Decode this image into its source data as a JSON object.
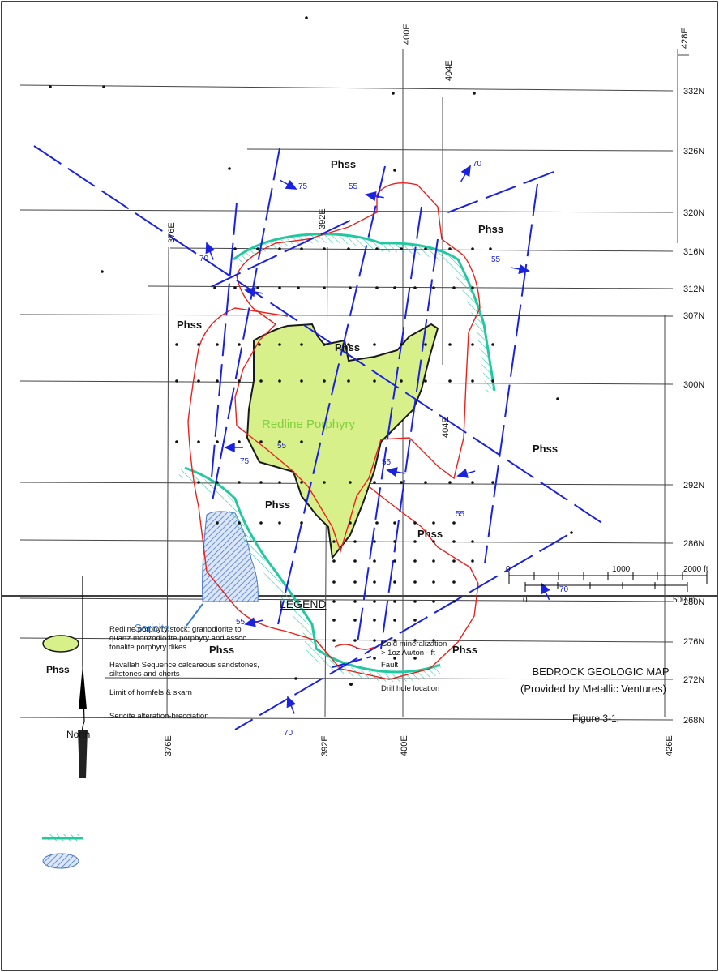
{
  "map": {
    "grid_east_labels_top": [
      "400E",
      "404E",
      "428E"
    ],
    "grid_east_labels_mid": [
      "376E",
      "392E",
      "404E"
    ],
    "grid_east_labels_bottom": [
      "376E",
      "392E",
      "400E",
      "426E"
    ],
    "grid_north_labels": [
      "332N",
      "326N",
      "320N",
      "316N",
      "312N",
      "307N",
      "300N",
      "292N",
      "286N",
      "280N",
      "276N",
      "272N",
      "268N"
    ],
    "unit_label": "Phss",
    "unit_labels_count": 9,
    "stock_label": "Redline Porphyry",
    "sericite_label": "Sericite",
    "dip_values": [
      "70",
      "75",
      "55",
      "55",
      "70",
      "55",
      "75",
      "55",
      "55",
      "55",
      "70",
      "70"
    ],
    "north_label": "North",
    "scale": {
      "ft_ticks": [
        "0",
        "1000",
        "2000 ft"
      ],
      "m_ticks": [
        "0",
        "500 m"
      ]
    },
    "colors": {
      "stock_fill": "#d8f08a",
      "stock_label": "#7ed03a",
      "gold_line": "#e8221c",
      "fault_line": "#1a22e0",
      "hornfels": "#22c8a0",
      "sericite": "#4a78c8",
      "sericite_label": "#3d7cc9"
    }
  },
  "legend": {
    "title": "LEGEND",
    "items_left": [
      {
        "symbol": "green-stock-swatch",
        "text_lines": [
          "Redline porphyry stock:  granodiorite to",
          "quartz monzodiorite porphyry and assoc.",
          "tonalite porphyry dikes"
        ]
      },
      {
        "symbol": "Phss",
        "text_lines": [
          "Havallah Sequence calcareous sandstones,",
          "siltstones and cherts"
        ]
      },
      {
        "symbol": "hornfels-swatch",
        "text_lines": [
          "Limit of hornfels & skarn"
        ]
      },
      {
        "symbol": "sericite-swatch",
        "text_lines": [
          "Sericite alteration-brecciation"
        ]
      }
    ],
    "items_right": [
      {
        "symbol": "red-line",
        "text_lines": [
          "Gold mineralization",
          "> 1oz Au/ton - ft"
        ]
      },
      {
        "symbol": "fault-line",
        "text_lines": [
          "Fault"
        ]
      },
      {
        "symbol": "dot",
        "text_lines": [
          "Drill hole location"
        ]
      }
    ],
    "map_title": "BEDROCK GEOLOGIC MAP",
    "map_source": "(Provided by Metallic Ventures)",
    "figure_label": "Figure 3-1."
  }
}
